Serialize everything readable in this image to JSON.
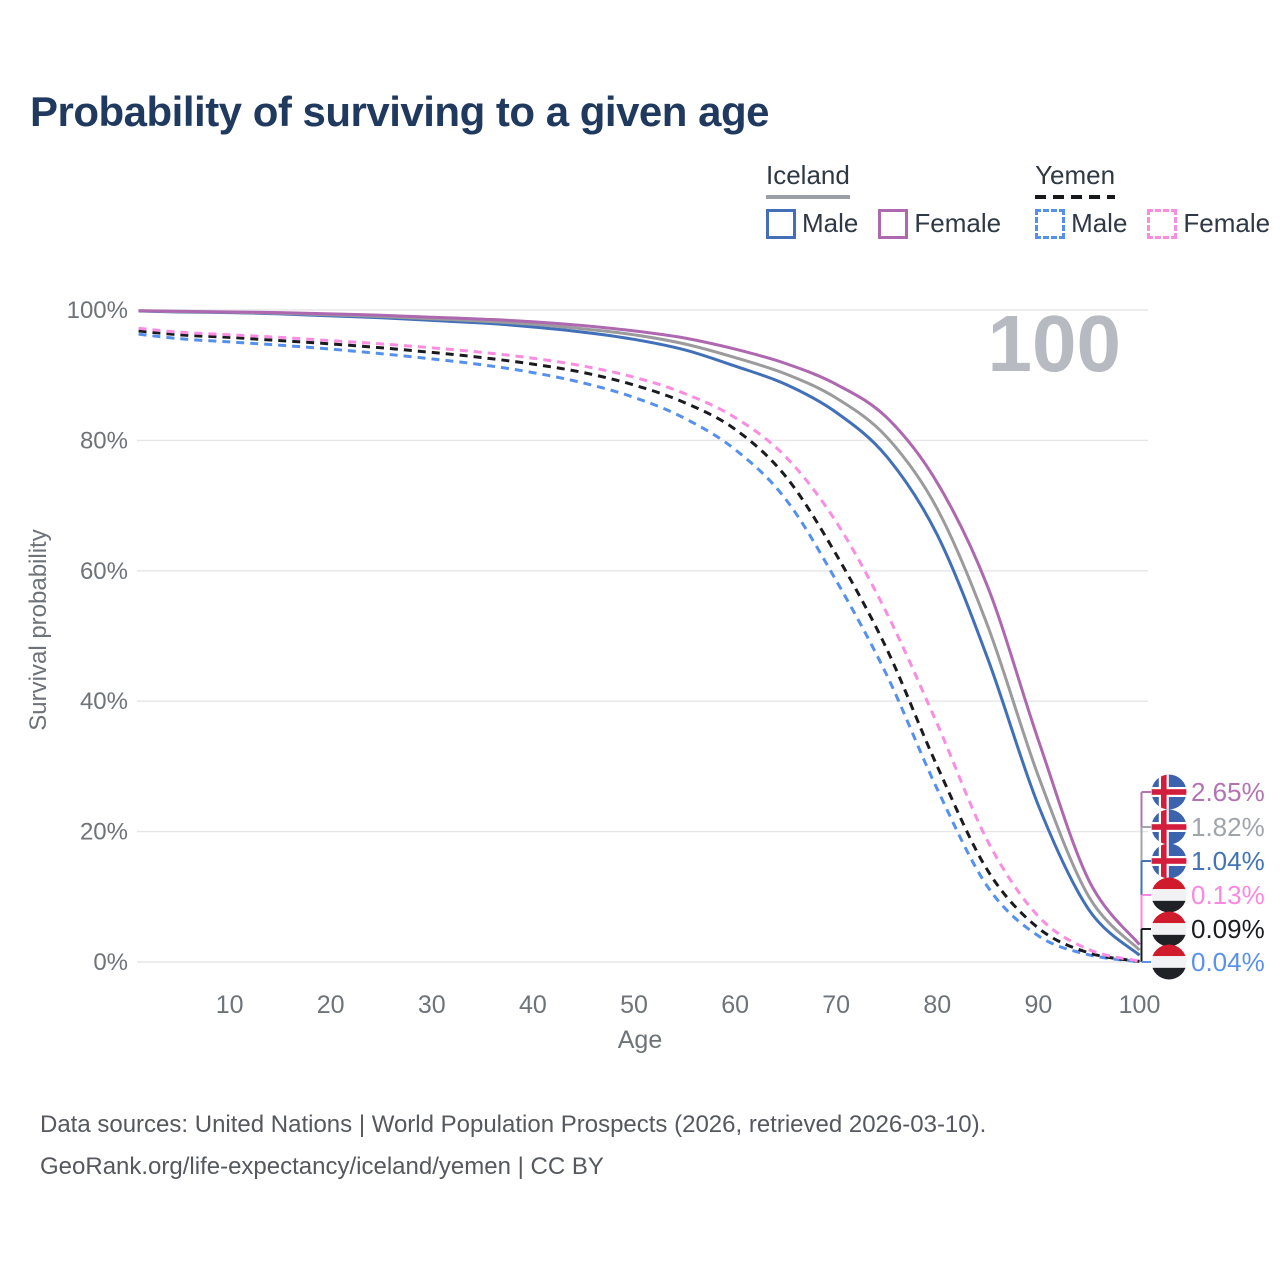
{
  "page": {
    "title": "Probability of surviving to a given age"
  },
  "legend": {
    "groups": [
      {
        "label": "Iceland",
        "underline": "solid",
        "underline_color": "#9aa0a6",
        "items": [
          {
            "label": "Male",
            "color": "#4170b8",
            "dash": "solid"
          },
          {
            "label": "Female",
            "color": "#ae68b0",
            "dash": "solid"
          }
        ]
      },
      {
        "label": "Yemen",
        "underline": "dashed",
        "underline_color": "#17181c",
        "items": [
          {
            "label": "Male",
            "color": "#5590ec",
            "dash": "dashed"
          },
          {
            "label": "Female",
            "color": "#fa8ce1",
            "dash": "dashed"
          }
        ]
      }
    ]
  },
  "colors": {
    "title": "#1f3a5e",
    "grid": "#e6e6e8",
    "axis_text": "#6e7379",
    "counter": "#b7bac1",
    "footer": "#55585e"
  },
  "chart_data": {
    "type": "line",
    "title": "Probability of surviving to a given age",
    "xlabel": "Age",
    "ylabel": "Survival probability",
    "xlim": [
      0,
      100
    ],
    "ylim": [
      0,
      100
    ],
    "grid": "horizontal",
    "legend_position": "top-right",
    "age_counter": "100",
    "x_ticks": [
      10,
      20,
      30,
      40,
      50,
      60,
      70,
      80,
      90,
      100
    ],
    "y_ticks": [
      {
        "value": 0,
        "label": "0%"
      },
      {
        "value": 20,
        "label": "20%"
      },
      {
        "value": 40,
        "label": "40%"
      },
      {
        "value": 60,
        "label": "60%"
      },
      {
        "value": 80,
        "label": "80%"
      },
      {
        "value": 100,
        "label": "100%"
      }
    ],
    "x": [
      1,
      5,
      10,
      15,
      20,
      25,
      30,
      35,
      40,
      45,
      50,
      55,
      60,
      65,
      70,
      75,
      80,
      85,
      90,
      95,
      100
    ],
    "series": [
      {
        "id": "iceland-female",
        "country": "Iceland",
        "sex": "Female",
        "dash": "solid",
        "color": "#ae68b0",
        "values": [
          99.9,
          99.8,
          99.7,
          99.6,
          99.4,
          99.2,
          98.9,
          98.6,
          98.2,
          97.6,
          96.8,
          95.7,
          94.0,
          91.8,
          88.6,
          83.5,
          73.5,
          57.5,
          34.0,
          12.5,
          2.65
        ],
        "end_label": {
          "value": "2.65%",
          "color": "#b273b2"
        }
      },
      {
        "id": "iceland-both",
        "country": "Iceland",
        "sex": "Both",
        "dash": "solid",
        "color": "#9b9b9e",
        "values": [
          99.9,
          99.75,
          99.65,
          99.5,
          99.25,
          99.0,
          98.65,
          98.3,
          97.8,
          97.1,
          96.2,
          94.8,
          92.7,
          90.2,
          86.5,
          80.5,
          69.5,
          51.5,
          28.5,
          10.0,
          1.82
        ],
        "end_label": {
          "value": "1.82%",
          "color": "#a0a5ab"
        }
      },
      {
        "id": "iceland-male",
        "country": "Iceland",
        "sex": "Male",
        "dash": "solid",
        "color": "#4170b8",
        "values": [
          99.85,
          99.7,
          99.6,
          99.4,
          99.1,
          98.8,
          98.4,
          98.0,
          97.4,
          96.6,
          95.5,
          93.9,
          91.4,
          88.6,
          84.3,
          77.5,
          65.5,
          46.5,
          24.0,
          8.0,
          1.04
        ],
        "end_label": {
          "value": "1.04%",
          "color": "#4273b5"
        }
      },
      {
        "id": "yemen-female",
        "country": "Yemen",
        "sex": "Female",
        "dash": "dashed",
        "color": "#fa8ce1",
        "values": [
          97.2,
          96.6,
          96.2,
          95.8,
          95.3,
          94.8,
          94.2,
          93.5,
          92.6,
          91.4,
          89.7,
          87.2,
          83.5,
          77.5,
          67.5,
          53.5,
          36.5,
          18.5,
          7.0,
          1.9,
          0.13
        ],
        "end_label": {
          "value": "0.13%",
          "color": "#fb87e2"
        }
      },
      {
        "id": "yemen-both",
        "country": "Yemen",
        "sex": "Both",
        "dash": "dashed",
        "color": "#1a1b1f",
        "values": [
          96.8,
          96.2,
          95.8,
          95.3,
          94.8,
          94.2,
          93.5,
          92.7,
          91.7,
          90.4,
          88.5,
          85.8,
          81.7,
          74.5,
          62.5,
          48.0,
          30.0,
          14.0,
          5.2,
          1.4,
          0.09
        ],
        "end_label": {
          "value": "0.09%",
          "color": "#1b1c20"
        }
      },
      {
        "id": "yemen-male",
        "country": "Yemen",
        "sex": "Male",
        "dash": "dashed",
        "color": "#5590ec",
        "values": [
          96.3,
          95.6,
          95.1,
          94.6,
          94.0,
          93.3,
          92.5,
          91.6,
          90.4,
          88.8,
          86.6,
          83.4,
          78.6,
          71.0,
          58.5,
          44.0,
          26.5,
          11.5,
          4.0,
          1.1,
          0.04
        ],
        "end_label": {
          "value": "0.04%",
          "color": "#5b91e9"
        }
      }
    ],
    "flag_colors": {
      "iceland": {
        "blue": "#3c63ae",
        "white": "#ffffff",
        "red": "#d21e3c"
      },
      "yemen": {
        "red": "#cf1b2b",
        "white": "#f2f2f4",
        "black": "#202027"
      }
    }
  },
  "footer": {
    "line1": "Data sources: United Nations | World Population Prospects (2026, retrieved 2026-03-10).",
    "line2": "GeoRank.org/life-expectancy/iceland/yemen | CC BY"
  }
}
